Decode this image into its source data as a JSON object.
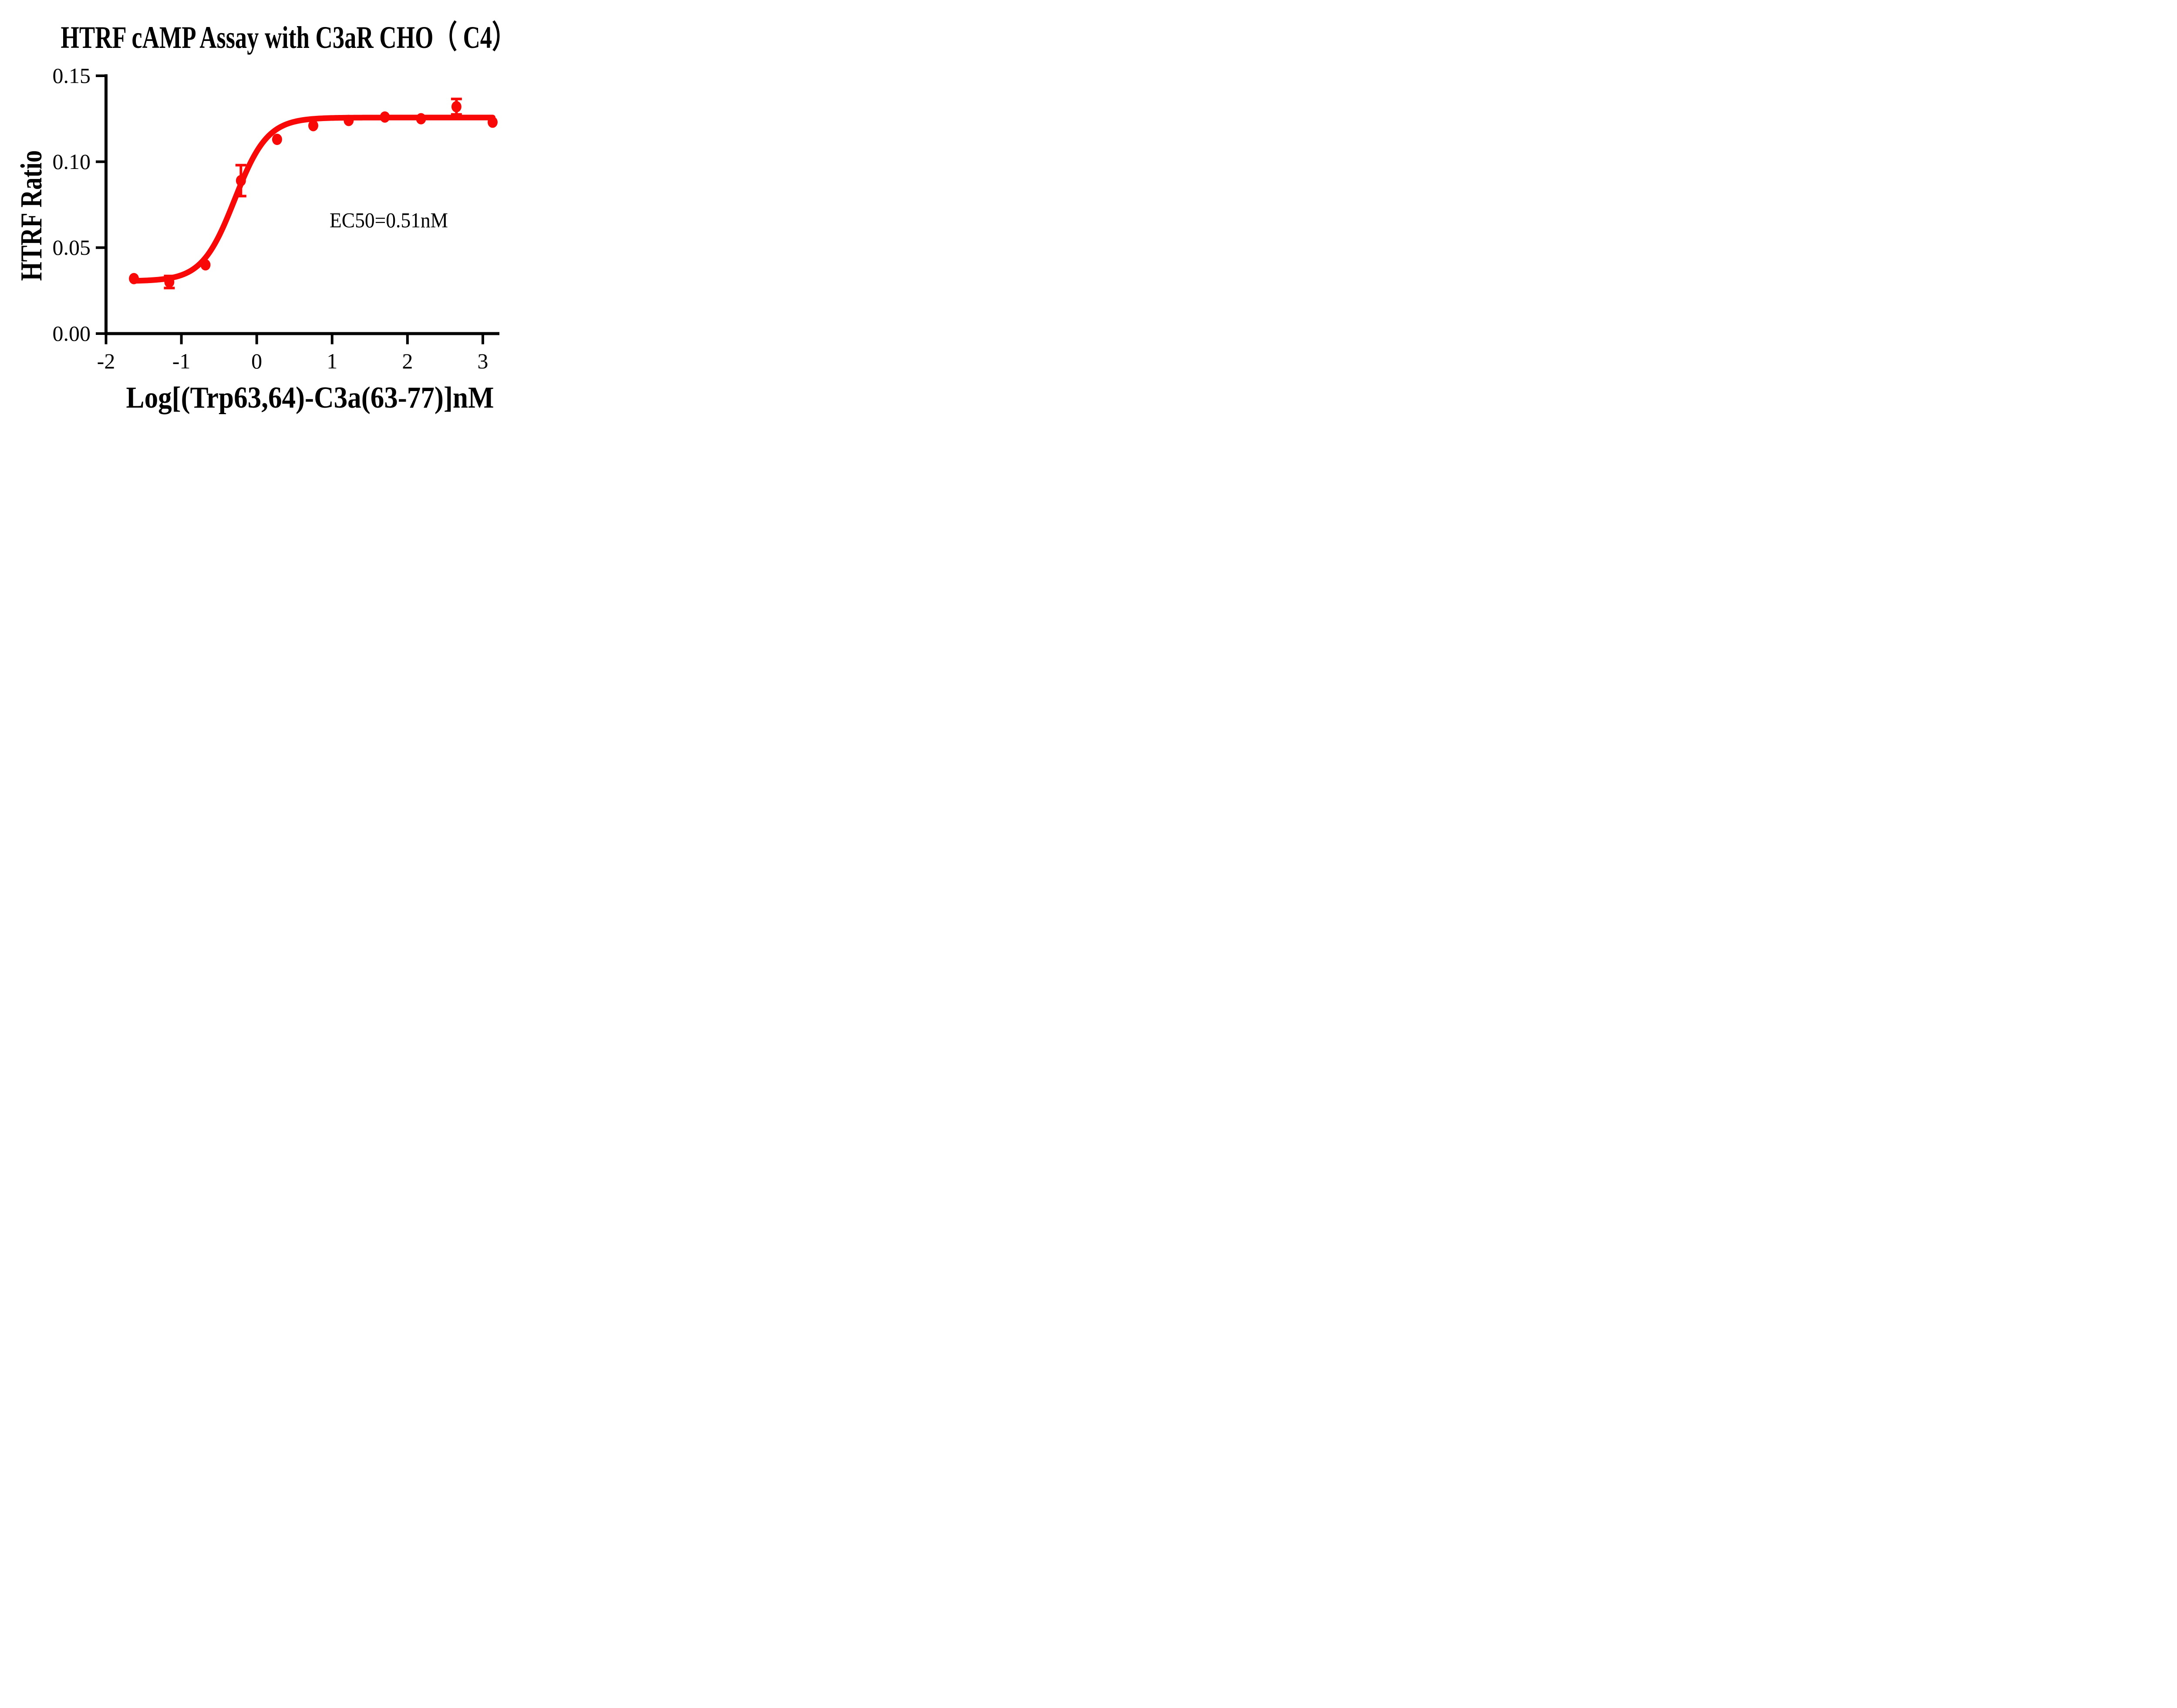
{
  "title": "HTRF cAMP Assay with C3aR CHO（ C4）",
  "chart_data": {
    "type": "scatter",
    "subtype": "dose-response sigmoidal fit",
    "title": "HTRF cAMP Assay with C3aR CHO（ C4）",
    "xlabel": "Log[(Trp63,64)-C3a(63-77)]nM",
    "ylabel": "HTRF Ratio",
    "xlim": [
      -2,
      3.22
    ],
    "ylim": [
      0,
      0.15
    ],
    "x_ticks": [
      -2,
      -1,
      0,
      1,
      2,
      3
    ],
    "x_tick_labels": [
      "-2",
      "-1",
      "0",
      "1",
      "2",
      "3"
    ],
    "y_ticks": [
      0,
      0.05,
      0.1,
      0.15
    ],
    "y_tick_labels": [
      "0.00",
      "0.05",
      "0.10",
      "0.15"
    ],
    "grid": false,
    "legend_position": "none",
    "axis_color": "#000000",
    "series": [
      {
        "color": "#F90808",
        "marker": "circle",
        "points": [
          {
            "x": -1.63,
            "y": 0.032,
            "err": 0
          },
          {
            "x": -1.16,
            "y": 0.03,
            "err": 0.0035
          },
          {
            "x": -0.68,
            "y": 0.04,
            "err": 0
          },
          {
            "x": -0.21,
            "y": 0.089,
            "err": 0.009
          },
          {
            "x": 0.27,
            "y": 0.113,
            "err": 0
          },
          {
            "x": 0.75,
            "y": 0.121,
            "err": 0
          },
          {
            "x": 1.22,
            "y": 0.124,
            "err": 0
          },
          {
            "x": 1.7,
            "y": 0.126,
            "err": 0
          },
          {
            "x": 2.18,
            "y": 0.125,
            "err": 0
          },
          {
            "x": 2.65,
            "y": 0.132,
            "err": 0.0045
          },
          {
            "x": 3.13,
            "y": 0.123,
            "err": 0
          }
        ],
        "fit": {
          "model": "four-parameter logistic",
          "bottom": 0.0305,
          "top": 0.1257,
          "logEC50": -0.292,
          "hillslope": 2.0,
          "x_start": -1.63,
          "x_end": 3.13
        }
      }
    ],
    "annotations": [
      {
        "text": "EC50=0.51nM",
        "x": 0.97,
        "y": 0.066
      }
    ],
    "ec50_nM": 0.51
  }
}
